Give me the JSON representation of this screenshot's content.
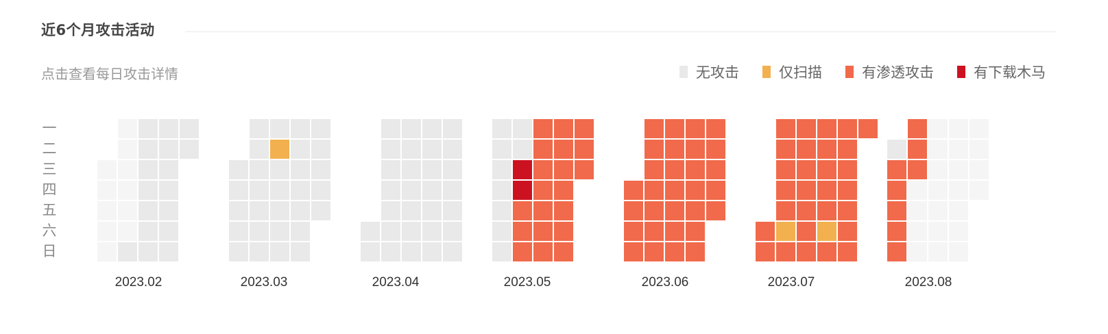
{
  "header": {
    "title": "近6个月攻击活动",
    "subtitle": "点击查看每日攻击详情"
  },
  "legend": {
    "items": [
      {
        "key": "none",
        "label": "无攻击",
        "color": "#e9e9e9"
      },
      {
        "key": "scan",
        "label": "仅扫描",
        "color": "#f2b04f"
      },
      {
        "key": "penetration",
        "label": "有渗透攻击",
        "color": "#f06a4b"
      },
      {
        "key": "trojan",
        "label": "有下载木马",
        "color": "#cc1221"
      }
    ]
  },
  "colors": {
    "out_of_range": "#f5f5f5",
    "none": "#e9e9e9",
    "scan": "#f2b04f",
    "penetration": "#f06a4b",
    "trojan": "#cc1221"
  },
  "weekdays": [
    "一",
    "二",
    "三",
    "四",
    "五",
    "六",
    "日"
  ],
  "months": [
    {
      "label": "2023.02",
      "weeks": [
        [
          "",
          "",
          "O",
          "O",
          "O",
          "O",
          "O"
        ],
        [
          "O",
          "O",
          "O",
          "O",
          "O",
          "O",
          "N"
        ],
        [
          "N",
          "N",
          "N",
          "N",
          "N",
          "N",
          "N"
        ],
        [
          "N",
          "N",
          "N",
          "N",
          "N",
          "N",
          "N"
        ],
        [
          "N",
          "N",
          "",
          "",
          "",
          "",
          ""
        ]
      ]
    },
    {
      "label": "2023.03",
      "weeks": [
        [
          "",
          "",
          "N",
          "N",
          "N",
          "N",
          "N"
        ],
        [
          "N",
          "N",
          "N",
          "N",
          "N",
          "N",
          "N"
        ],
        [
          "N",
          "S",
          "N",
          "N",
          "N",
          "N",
          "N"
        ],
        [
          "N",
          "N",
          "N",
          "N",
          "N",
          "N",
          "N"
        ],
        [
          "N",
          "N",
          "N",
          "N",
          "N",
          "",
          ""
        ]
      ]
    },
    {
      "label": "2023.04",
      "weeks": [
        [
          "",
          "",
          "",
          "",
          "",
          "N",
          "N"
        ],
        [
          "N",
          "N",
          "N",
          "N",
          "N",
          "N",
          "N"
        ],
        [
          "N",
          "N",
          "N",
          "N",
          "N",
          "N",
          "N"
        ],
        [
          "N",
          "N",
          "N",
          "N",
          "N",
          "N",
          "N"
        ],
        [
          "N",
          "N",
          "N",
          "N",
          "N",
          "N",
          "N"
        ]
      ]
    },
    {
      "label": "2023.05",
      "weeks": [
        [
          "N",
          "N",
          "N",
          "N",
          "N",
          "N",
          "N"
        ],
        [
          "N",
          "N",
          "T",
          "T",
          "P",
          "P",
          "P"
        ],
        [
          "P",
          "P",
          "P",
          "P",
          "P",
          "P",
          "P"
        ],
        [
          "P",
          "P",
          "P",
          "P",
          "P",
          "P",
          "P"
        ],
        [
          "P",
          "P",
          "P",
          "",
          "",
          "",
          ""
        ]
      ]
    },
    {
      "label": "2023.06",
      "weeks": [
        [
          "",
          "",
          "",
          "P",
          "P",
          "P",
          "P"
        ],
        [
          "P",
          "P",
          "P",
          "P",
          "P",
          "P",
          "P"
        ],
        [
          "P",
          "P",
          "P",
          "P",
          "P",
          "P",
          "P"
        ],
        [
          "P",
          "P",
          "P",
          "P",
          "P",
          "P",
          "P"
        ],
        [
          "P",
          "P",
          "P",
          "P",
          "P",
          "",
          ""
        ]
      ]
    },
    {
      "label": "2023.07",
      "weeks": [
        [
          "",
          "",
          "",
          "",
          "",
          "P",
          "P"
        ],
        [
          "P",
          "P",
          "P",
          "P",
          "P",
          "S",
          "P"
        ],
        [
          "P",
          "P",
          "P",
          "P",
          "P",
          "P",
          "P"
        ],
        [
          "P",
          "P",
          "P",
          "P",
          "P",
          "S",
          "P"
        ],
        [
          "P",
          "P",
          "P",
          "P",
          "P",
          "P",
          "P"
        ],
        [
          "P",
          "",
          "",
          "",
          "",
          "",
          ""
        ]
      ]
    },
    {
      "label": "2023.08",
      "weeks": [
        [
          "",
          "N",
          "P",
          "P",
          "P",
          "P",
          "P"
        ],
        [
          "P",
          "P",
          "P",
          "O",
          "O",
          "O",
          "O"
        ],
        [
          "O",
          "O",
          "O",
          "O",
          "O",
          "O",
          "O"
        ],
        [
          "O",
          "O",
          "O",
          "O",
          "O",
          "O",
          "O"
        ],
        [
          "O",
          "O",
          "O",
          "O",
          "",
          "",
          ""
        ]
      ]
    }
  ]
}
